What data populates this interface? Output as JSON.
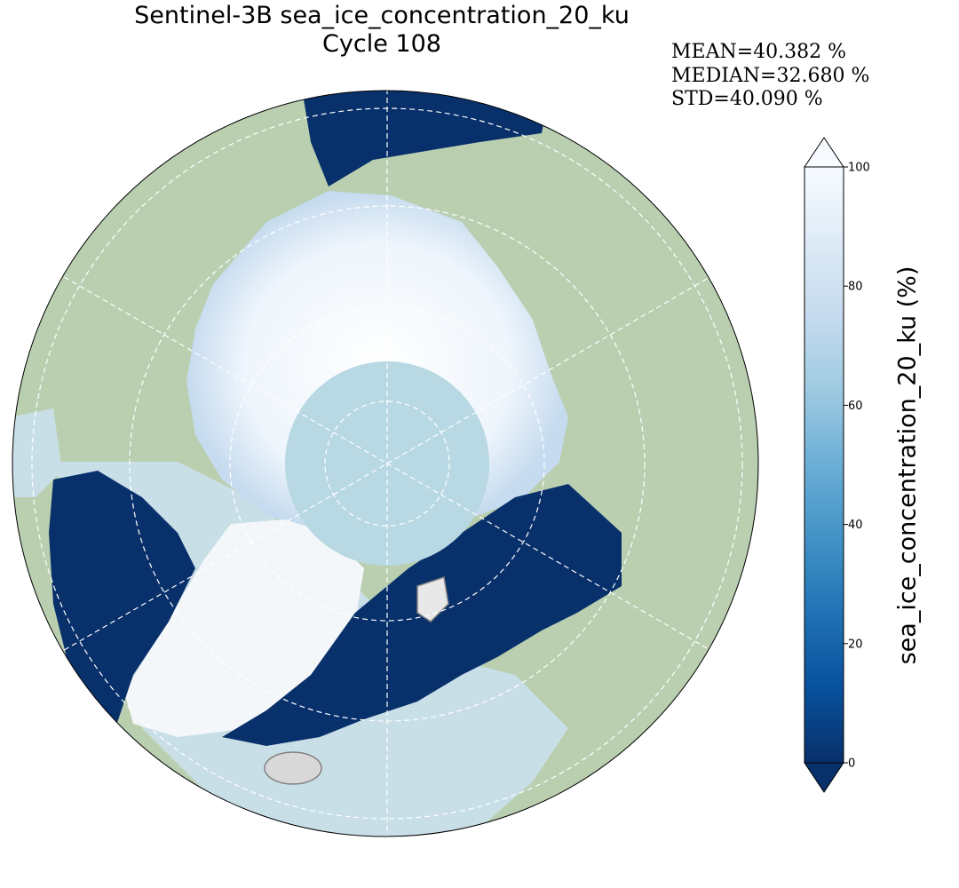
{
  "title": {
    "line1": "Sentinel-3B sea_ice_concentration_20_ku",
    "line2": "Cycle 108"
  },
  "stats": {
    "mean": "MEAN=40.382 %",
    "median": "MEDIAN=32.680 %",
    "std": "STD=40.090 %"
  },
  "colorbar": {
    "label": "sea_ice_concentration_20_ku (%)",
    "min": 0,
    "max": 100,
    "ticks": [
      "0",
      "20",
      "40",
      "60",
      "80",
      "100"
    ],
    "colormap": [
      "#08306b",
      "#08519c",
      "#2171b5",
      "#4292c6",
      "#6baed6",
      "#9ecae1",
      "#c6dbef",
      "#deebf7",
      "#f7fbff"
    ],
    "extend": "both"
  },
  "map": {
    "projection": "north-polar-stereographic",
    "colors": {
      "land": "#b9cfb0",
      "ocean": "#c9dfe7",
      "ice_high": "#f3f8fd",
      "ice_low": "#08306b",
      "pole_hole": "#b8d8e3",
      "gridline": "#ffffff",
      "coastline": "#808080"
    }
  }
}
